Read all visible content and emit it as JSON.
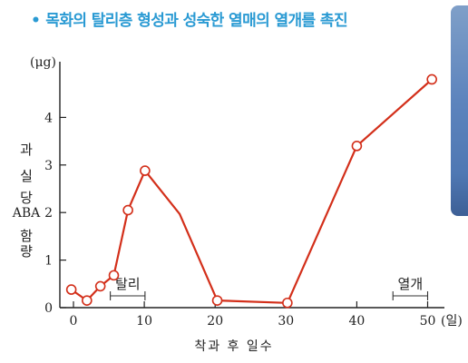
{
  "title": {
    "bullet": "•",
    "text": "목화의 탈리층 형성과 성숙한 열매의 열개를 촉진"
  },
  "colors": {
    "title": "#2a9ad3",
    "line": "#d32f1a",
    "axis": "#222222"
  },
  "chart_data": {
    "type": "line",
    "title": "목화의 탈리층 형성과 성숙한 열매의 열개를 촉진",
    "unit": "(μg)",
    "ylabel": [
      "과",
      "실",
      "당",
      "ABA",
      "함",
      "량"
    ],
    "xlabel": "착과 후 일수",
    "x_unit": "(일)",
    "xlim": [
      0,
      50
    ],
    "ylim": [
      0,
      4.8
    ],
    "x_ticks": [
      0,
      10,
      20,
      30,
      40,
      50
    ],
    "y_ticks": [
      0,
      1,
      2,
      3,
      4
    ],
    "series": [
      {
        "points": [
          {
            "x": -0.3,
            "y": 0.38,
            "marker": true
          },
          {
            "x": 1.9,
            "y": 0.15,
            "marker": true
          },
          {
            "x": 3.8,
            "y": 0.45,
            "marker": true
          },
          {
            "x": 5.7,
            "y": 0.68,
            "marker": true
          },
          {
            "x": 7.7,
            "y": 2.05,
            "marker": true
          },
          {
            "x": 10.1,
            "y": 2.88,
            "marker": true
          },
          {
            "x": 15.0,
            "y": 1.97,
            "marker": false
          },
          {
            "x": 20.3,
            "y": 0.15,
            "marker": true
          },
          {
            "x": 30.2,
            "y": 0.1,
            "marker": true
          },
          {
            "x": 40.0,
            "y": 3.4,
            "marker": true
          },
          {
            "x": 50.6,
            "y": 4.8,
            "marker": true
          }
        ]
      }
    ],
    "annotations": [
      {
        "label": "탈리",
        "x_start": 5.2,
        "x_end": 10.1
      },
      {
        "label": "열개",
        "x_start": 45.1,
        "x_end": 50.0
      }
    ],
    "grid": false
  }
}
